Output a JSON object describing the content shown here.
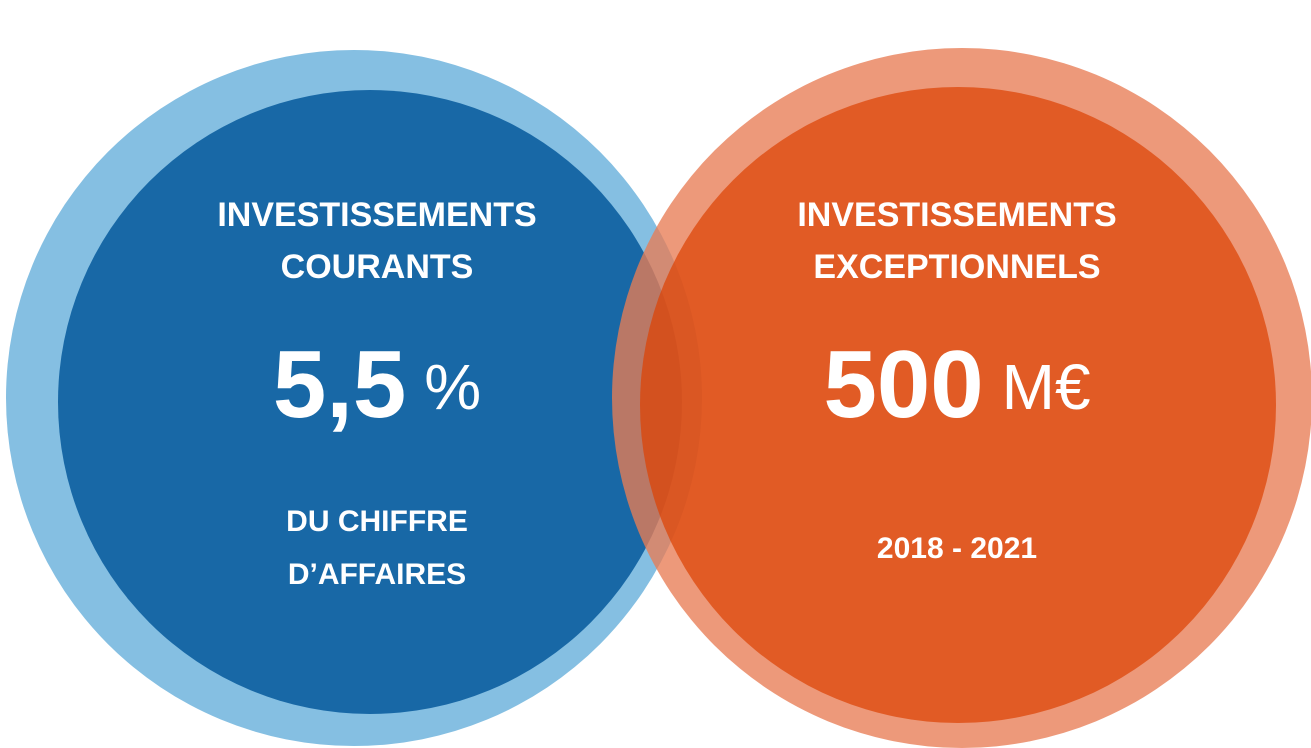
{
  "left": {
    "title_lines": [
      "INVESTISSEMENTS",
      "COURANTS"
    ],
    "value": "5,5",
    "unit": "%",
    "caption_lines": [
      "DU CHIFFRE",
      "D’AFFAIRES"
    ]
  },
  "right": {
    "title_lines": [
      "INVESTISSEMENTS",
      "EXCEPTIONNELS"
    ],
    "value": "500",
    "unit": "M€",
    "caption_lines": [
      "2018 - 2021"
    ]
  }
}
